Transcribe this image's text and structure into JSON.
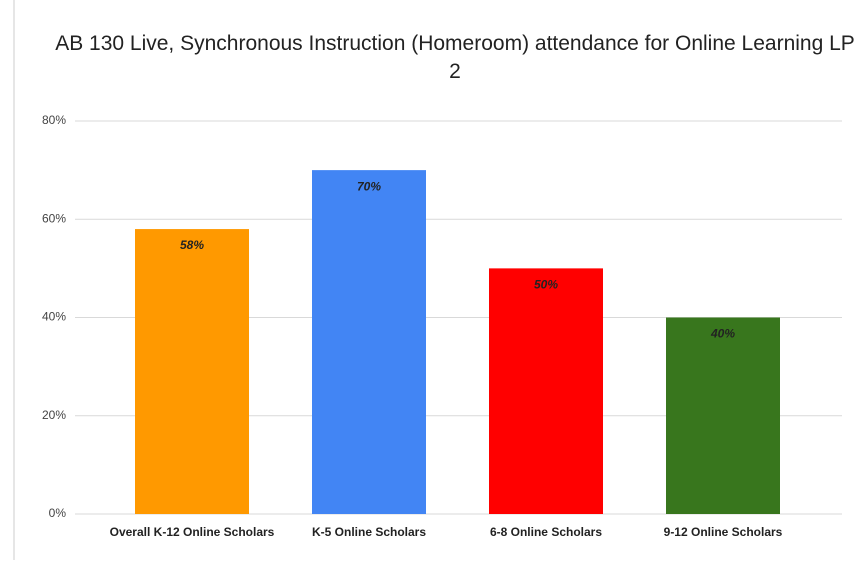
{
  "chart_data": {
    "type": "bar",
    "title": "AB 130 Live, Synchronous Instruction (Homeroom) attendance for Online Learning LP 2",
    "categories": [
      "Overall K-12 Online Scholars",
      "K-5 Online Scholars",
      "6-8 Online Scholars",
      "9-12 Online Scholars"
    ],
    "values": [
      58,
      70,
      50,
      40
    ],
    "value_labels": [
      "58%",
      "70%",
      "50%",
      "40%"
    ],
    "colors": [
      "#ff9900",
      "#4285f4",
      "#ff0000",
      "#38761d"
    ],
    "ylim": [
      0,
      80
    ],
    "yticks": [
      {
        "value": 0,
        "label": "0%"
      },
      {
        "value": 20,
        "label": "20%"
      },
      {
        "value": 40,
        "label": "40%"
      },
      {
        "value": 60,
        "label": "60%"
      },
      {
        "value": 80,
        "label": "80%"
      }
    ],
    "grid": true
  }
}
